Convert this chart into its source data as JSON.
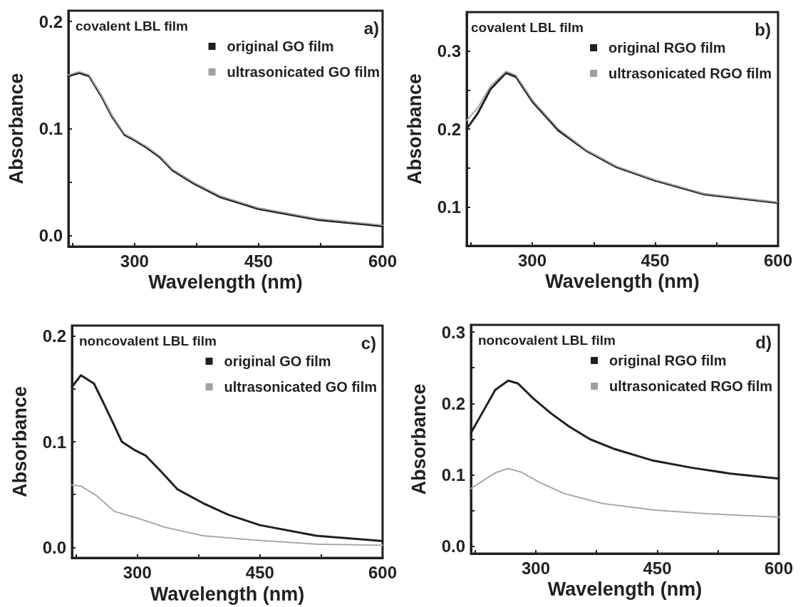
{
  "chart_data": [
    {
      "type": "line",
      "xlabel": "Wavelength (nm)",
      "ylabel": "Absorbance",
      "annotations": [
        "covalent LBL film",
        "a)"
      ],
      "xlim": [
        220,
        600
      ],
      "xticks": [
        {
          "value": 225,
          "label": null
        },
        300,
        {
          "value": 375,
          "label": null
        },
        450,
        {
          "value": 525,
          "label": null
        },
        600
      ],
      "ylim": [
        -0.01,
        0.21
      ],
      "yticks": [
        {
          "value": 0,
          "label": "0.0"
        },
        {
          "value": 0.05,
          "label": null
        },
        0.1,
        {
          "value": 0.15,
          "label": null
        },
        0.2
      ],
      "grid": false,
      "legend": "top right",
      "marker": "none",
      "series": [
        {
          "name": "original GO film",
          "color": "#231f20",
          "line_style": "solid",
          "x": [
            220,
            233,
            245,
            260,
            273,
            288,
            300,
            315,
            331,
            346,
            371,
            404,
            450,
            521,
            600
          ],
          "values": [
            0.149,
            0.152,
            0.149,
            0.13,
            0.111,
            0.094,
            0.089,
            0.082,
            0.073,
            0.061,
            0.049,
            0.036,
            0.025,
            0.015,
            0.009
          ]
        },
        {
          "name": "ultrasonicated GO film",
          "color": "#a0a0a0",
          "line_style": "dotted",
          "x": [
            220,
            233,
            245,
            260,
            273,
            288,
            300,
            315,
            331,
            346,
            371,
            404,
            450,
            521,
            600
          ],
          "values": [
            0.15,
            0.153,
            0.15,
            0.131,
            0.112,
            0.095,
            0.09,
            0.083,
            0.074,
            0.062,
            0.05,
            0.037,
            0.026,
            0.016,
            0.01
          ]
        }
      ]
    },
    {
      "type": "line",
      "xlabel": "Wavelength (nm)",
      "ylabel": "Absorbance",
      "annotations": [
        "covalent LBL film",
        "b)"
      ],
      "xlim": [
        220,
        600
      ],
      "xticks": [
        {
          "value": 225,
          "label": null
        },
        300,
        {
          "value": 375,
          "label": null
        },
        450,
        {
          "value": 525,
          "label": null
        },
        600
      ],
      "ylim": [
        0.05,
        0.35
      ],
      "yticks": [
        0.1,
        {
          "value": 0.15,
          "label": null
        },
        0.2,
        {
          "value": 0.25,
          "label": null
        },
        0.3
      ],
      "grid": false,
      "legend": "top right",
      "marker": "none",
      "series": [
        {
          "name": "original RGO film",
          "color": "#231f20",
          "line_style": "solid",
          "x": [
            220,
            234,
            249,
            268,
            280,
            301,
            332,
            366,
            403,
            449,
            510,
            600
          ],
          "values": [
            0.2,
            0.221,
            0.251,
            0.272,
            0.267,
            0.234,
            0.198,
            0.172,
            0.151,
            0.134,
            0.116,
            0.105
          ]
        },
        {
          "name": "ultrasonicated RGO film",
          "color": "#a0a0a0",
          "line_style": "dotted",
          "x": [
            220,
            234,
            249,
            268,
            280,
            301,
            332,
            366,
            403,
            449,
            510,
            600
          ],
          "values": [
            0.211,
            0.228,
            0.255,
            0.274,
            0.269,
            0.236,
            0.2,
            0.173,
            0.152,
            0.135,
            0.117,
            0.106
          ]
        }
      ]
    },
    {
      "type": "line",
      "xlabel": "Wavelength (nm)",
      "ylabel": "Absorbance",
      "annotations": [
        "noncovalent LBL film",
        "c)"
      ],
      "xlim": [
        220,
        600
      ],
      "xticks": [
        {
          "value": 225,
          "label": null
        },
        300,
        {
          "value": 375,
          "label": null
        },
        450,
        {
          "value": 525,
          "label": null
        },
        600
      ],
      "ylim": [
        -0.01,
        0.21
      ],
      "yticks": [
        {
          "value": 0,
          "label": "0.0"
        },
        {
          "value": 0.05,
          "label": null
        },
        0.1,
        {
          "value": 0.15,
          "label": null
        },
        0.2
      ],
      "grid": false,
      "legend": "top right",
      "marker": "none",
      "series": [
        {
          "name": "original GO film",
          "color": "#231f20",
          "line_style": "solid",
          "x": [
            220,
            231,
            247,
            259,
            272,
            281,
            297,
            310,
            330,
            349,
            380,
            411,
            450,
            519,
            600
          ],
          "values": [
            0.152,
            0.163,
            0.155,
            0.136,
            0.115,
            0.1,
            0.092,
            0.087,
            0.071,
            0.055,
            0.042,
            0.031,
            0.021,
            0.011,
            0.006
          ]
        },
        {
          "name": "ultrasonicated GO film",
          "color": "#a0a0a0",
          "line_style": "dotted",
          "x": [
            220,
            231,
            250,
            272,
            303,
            334,
            380,
            442,
            519,
            600
          ],
          "values": [
            0.059,
            0.058,
            0.049,
            0.034,
            0.027,
            0.019,
            0.011,
            0.007,
            0.003,
            0.002
          ]
        }
      ]
    },
    {
      "type": "line",
      "xlabel": "Wavelength (nm)",
      "ylabel": "Absorbance",
      "annotations": [
        "noncovalent LBL film",
        "d)"
      ],
      "xlim": [
        220,
        600
      ],
      "xticks": [
        {
          "value": 225,
          "label": null
        },
        300,
        {
          "value": 375,
          "label": null
        },
        450,
        {
          "value": 525,
          "label": null
        },
        600
      ],
      "ylim": [
        -0.01,
        0.31
      ],
      "yticks": [
        {
          "value": 0,
          "label": "0.0"
        },
        {
          "value": 0.05,
          "label": null
        },
        0.1,
        {
          "value": 0.15,
          "label": null
        },
        0.2,
        {
          "value": 0.25,
          "label": null
        },
        0.3
      ],
      "grid": false,
      "legend": "top right",
      "marker": "none",
      "series": [
        {
          "name": "original RGO film",
          "color": "#231f20",
          "line_style": "solid",
          "x": [
            220,
            235,
            250,
            266,
            278,
            297,
            319,
            341,
            367,
            398,
            445,
            493,
            540,
            600
          ],
          "values": [
            0.159,
            0.189,
            0.219,
            0.232,
            0.228,
            0.207,
            0.186,
            0.168,
            0.15,
            0.136,
            0.12,
            0.11,
            0.102,
            0.095
          ]
        },
        {
          "name": "ultrasonicated RGO film",
          "color": "#a0a0a0",
          "line_style": "dotted",
          "x": [
            220,
            235,
            250,
            266,
            282,
            304,
            335,
            383,
            445,
            508,
            600
          ],
          "values": [
            0.081,
            0.092,
            0.103,
            0.109,
            0.104,
            0.09,
            0.074,
            0.06,
            0.051,
            0.046,
            0.041
          ]
        }
      ]
    }
  ]
}
